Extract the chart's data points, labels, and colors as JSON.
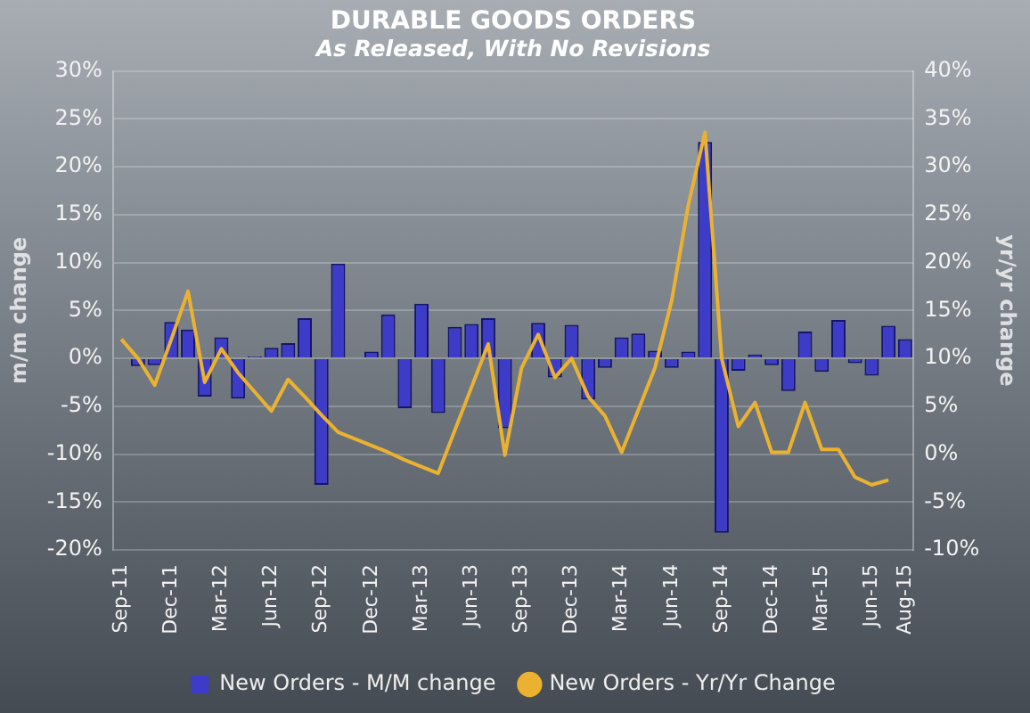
{
  "chart_data": {
    "type": "bar",
    "title": "DURABLE GOODS ORDERS",
    "subtitle": "As Released, With No Revisions",
    "ylabel": "m/m change",
    "y2label": "yr/yr change",
    "categories": [
      "Sep-11",
      null,
      null,
      "Dec-11",
      null,
      null,
      "Mar-12",
      null,
      null,
      "Jun-12",
      null,
      null,
      "Sep-12",
      null,
      null,
      "Dec-12",
      null,
      null,
      "Mar-13",
      null,
      null,
      "Jun-13",
      null,
      null,
      "Sep-13",
      null,
      null,
      "Dec-13",
      null,
      null,
      "Mar-14",
      null,
      null,
      "Jun-14",
      null,
      null,
      "Sep-14",
      null,
      null,
      "Dec-14",
      null,
      null,
      "Mar-15",
      null,
      null,
      "Jun-15",
      null,
      "Aug-15"
    ],
    "series": [
      {
        "name": "New Orders - M/M change",
        "color": "#3c3cc8",
        "values": [
          -0.1,
          -0.8,
          -0.7,
          3.8,
          3.0,
          -4.0,
          2.2,
          -4.2,
          0.2,
          1.1,
          1.6,
          4.2,
          -13.2,
          9.9,
          0.0,
          0.7,
          4.6,
          -5.2,
          5.7,
          -5.7,
          3.3,
          3.6,
          4.2,
          -7.3,
          0.1,
          3.7,
          -2.0,
          3.5,
          -4.3,
          -1.0,
          2.2,
          2.6,
          0.8,
          -1.0,
          0.7,
          22.6,
          -18.2,
          -1.3,
          0.4,
          -0.7,
          -3.4,
          2.8,
          -1.4,
          4.0,
          -0.5,
          -1.8,
          3.4,
          2.0
        ]
      },
      {
        "name": "New Orders - Yr/Yr Change",
        "type": "line",
        "axis": "y2",
        "color": "#eab230",
        "values": [
          12,
          10,
          7.2,
          12,
          17,
          7.5,
          11,
          8.5,
          6.5,
          4.5,
          7.8,
          6,
          4.1,
          2.3,
          1.6,
          0.9,
          0.2,
          -0.6,
          -1.3,
          -2,
          2.5,
          7,
          11.5,
          -0.1,
          9,
          12.5,
          8,
          10,
          6,
          4,
          0.2,
          4.6,
          9,
          16,
          26,
          33.6,
          10,
          2.9,
          5.4,
          0.2,
          0.2,
          5.4,
          0.5,
          0.5,
          -2.4,
          -3.2,
          -2.7,
          null
        ]
      }
    ],
    "ylim": [
      -20,
      30
    ],
    "yticks": [
      {
        "value": -20,
        "label": "-20%"
      },
      {
        "value": -15,
        "label": "-15%"
      },
      {
        "value": -10,
        "label": "-10%"
      },
      {
        "value": -5,
        "label": "-5%"
      },
      {
        "value": 0,
        "label": "0%"
      },
      {
        "value": 5,
        "label": "5%"
      },
      {
        "value": 10,
        "label": "10%"
      },
      {
        "value": 15,
        "label": "15%"
      },
      {
        "value": 20,
        "label": "20%"
      },
      {
        "value": 25,
        "label": "25%"
      },
      {
        "value": 30,
        "label": "30%"
      }
    ],
    "y2lim": [
      -10,
      40
    ],
    "y2ticks": [
      {
        "value": -10,
        "label": "-10%"
      },
      {
        "value": -5,
        "label": "-5%"
      },
      {
        "value": 0,
        "label": "0%"
      },
      {
        "value": 5,
        "label": "5%"
      },
      {
        "value": 10,
        "label": "10%"
      },
      {
        "value": 15,
        "label": "15%"
      },
      {
        "value": 20,
        "label": "20%"
      },
      {
        "value": 25,
        "label": "25%"
      },
      {
        "value": 30,
        "label": "30%"
      },
      {
        "value": 35,
        "label": "35%"
      },
      {
        "value": 40,
        "label": "40%"
      }
    ],
    "grid": "y",
    "legend": "bottom",
    "marker": "none"
  }
}
